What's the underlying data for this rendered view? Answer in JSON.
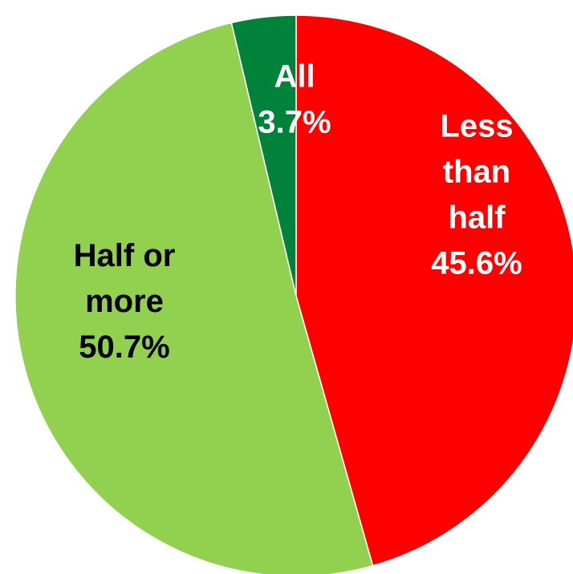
{
  "chart_data": {
    "type": "pie",
    "title": "",
    "start_angle_deg": 0,
    "direction": "clockwise",
    "slices": [
      {
        "name": "Less than half",
        "value": 45.6,
        "label_lines": [
          "Less",
          "than",
          "half",
          "45.6%"
        ],
        "color": "#FF0000",
        "label_color": "#FFFFFF"
      },
      {
        "name": "Half or more",
        "value": 50.7,
        "label_lines": [
          "Half or",
          "more",
          "50.7%"
        ],
        "color": "#92D050",
        "label_color": "#000000"
      },
      {
        "name": "All",
        "value": 3.7,
        "label_lines": [
          "All",
          "3.7%"
        ],
        "color": "#00823B",
        "label_color": "#FFFFFF"
      }
    ]
  }
}
